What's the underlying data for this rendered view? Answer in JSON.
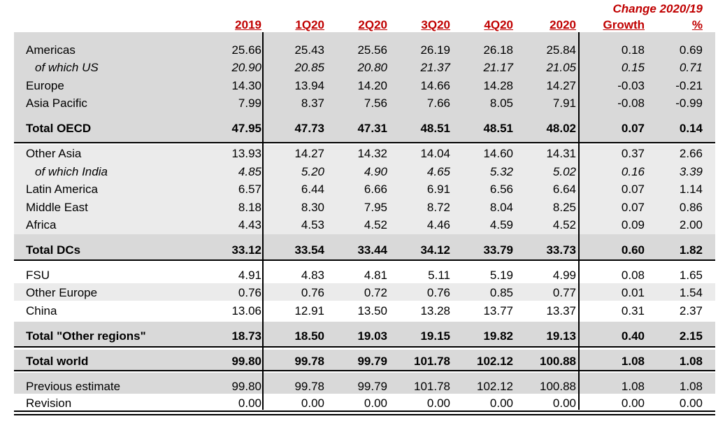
{
  "header": {
    "change_title": "Change 2020/19",
    "columns": [
      "2019",
      "1Q20",
      "2Q20",
      "3Q20",
      "4Q20",
      "2020",
      "Growth",
      "%"
    ]
  },
  "rows": [
    {
      "label": "Americas",
      "values": [
        "25.66",
        "25.43",
        "25.56",
        "26.19",
        "26.18",
        "25.84",
        "0.18",
        "0.69"
      ]
    },
    {
      "label": "of which US",
      "values": [
        "20.90",
        "20.85",
        "20.80",
        "21.37",
        "21.17",
        "21.05",
        "0.15",
        "0.71"
      ]
    },
    {
      "label": "Europe",
      "values": [
        "14.30",
        "13.94",
        "14.20",
        "14.66",
        "14.28",
        "14.27",
        "-0.03",
        "-0.21"
      ]
    },
    {
      "label": "Asia Pacific",
      "values": [
        "7.99",
        "8.37",
        "7.56",
        "7.66",
        "8.05",
        "7.91",
        "-0.08",
        "-0.99"
      ]
    },
    {
      "label": "Total OECD",
      "values": [
        "47.95",
        "47.73",
        "47.31",
        "48.51",
        "48.51",
        "48.02",
        "0.07",
        "0.14"
      ]
    },
    {
      "label": "Other Asia",
      "values": [
        "13.93",
        "14.27",
        "14.32",
        "14.04",
        "14.60",
        "14.31",
        "0.37",
        "2.66"
      ]
    },
    {
      "label": "of which India",
      "values": [
        "4.85",
        "5.20",
        "4.90",
        "4.65",
        "5.32",
        "5.02",
        "0.16",
        "3.39"
      ]
    },
    {
      "label": "Latin America",
      "values": [
        "6.57",
        "6.44",
        "6.66",
        "6.91",
        "6.56",
        "6.64",
        "0.07",
        "1.14"
      ]
    },
    {
      "label": "Middle East",
      "values": [
        "8.18",
        "8.30",
        "7.95",
        "8.72",
        "8.04",
        "8.25",
        "0.07",
        "0.86"
      ]
    },
    {
      "label": "Africa",
      "values": [
        "4.43",
        "4.53",
        "4.52",
        "4.46",
        "4.59",
        "4.52",
        "0.09",
        "2.00"
      ]
    },
    {
      "label": "Total DCs",
      "values": [
        "33.12",
        "33.54",
        "33.44",
        "34.12",
        "33.79",
        "33.73",
        "0.60",
        "1.82"
      ]
    },
    {
      "label": "FSU",
      "values": [
        "4.91",
        "4.83",
        "4.81",
        "5.11",
        "5.19",
        "4.99",
        "0.08",
        "1.65"
      ]
    },
    {
      "label": "Other Europe",
      "values": [
        "0.76",
        "0.76",
        "0.72",
        "0.76",
        "0.85",
        "0.77",
        "0.01",
        "1.54"
      ]
    },
    {
      "label": "China",
      "values": [
        "13.06",
        "12.91",
        "13.50",
        "13.28",
        "13.77",
        "13.37",
        "0.31",
        "2.37"
      ]
    },
    {
      "label": "Total \"Other regions\"",
      "values": [
        "18.73",
        "18.50",
        "19.03",
        "19.15",
        "19.82",
        "19.13",
        "0.40",
        "2.15"
      ]
    },
    {
      "label": "Total world",
      "values": [
        "99.80",
        "99.78",
        "99.79",
        "101.78",
        "102.12",
        "100.88",
        "1.08",
        "1.08"
      ]
    },
    {
      "label": "Previous estimate",
      "values": [
        "99.80",
        "99.78",
        "99.79",
        "101.78",
        "102.12",
        "100.88",
        "1.08",
        "1.08"
      ]
    },
    {
      "label": "Revision",
      "values": [
        "0.00",
        "0.00",
        "0.00",
        "0.00",
        "0.00",
        "0.00",
        "0.00",
        "0.00"
      ]
    }
  ],
  "colors": {
    "header_red": "#c00000",
    "band_gray": "#d9d9d9",
    "band_light": "#ebebeb"
  }
}
